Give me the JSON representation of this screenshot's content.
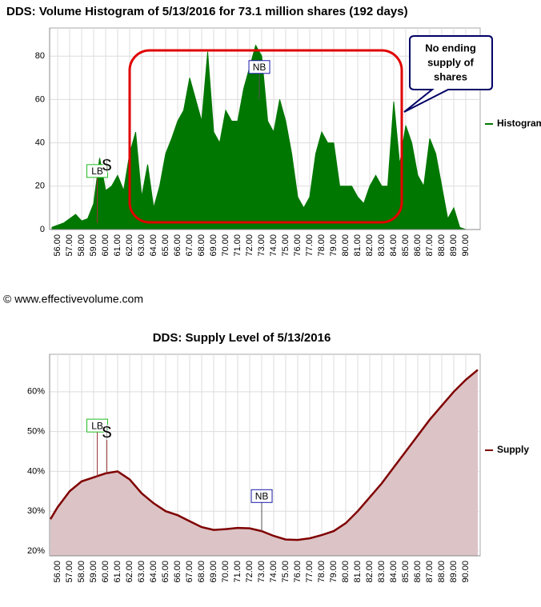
{
  "credit": "© www.effectivevolume.com",
  "chart_data": [
    {
      "type": "area",
      "title": "DDS: Volume Histogram of 5/13/2016 for 73.1 million shares (192 days)",
      "annotations": [
        "LB",
        "$",
        "NB"
      ],
      "callout": [
        "No ending",
        "supply of",
        "shares"
      ],
      "legend": "right",
      "grid": true,
      "xlim": [
        55.33,
        91.2
      ],
      "ylim": [
        0,
        93
      ],
      "yticks": [
        0,
        20,
        40,
        60,
        80
      ],
      "xticks": [
        {
          "value": 56,
          "label": "56.00"
        },
        {
          "value": 57,
          "label": "57.00"
        },
        {
          "value": 58,
          "label": "58.00"
        },
        {
          "value": 59,
          "label": "59.00"
        },
        {
          "value": 60,
          "label": "60.00"
        },
        {
          "value": 61,
          "label": "61.00"
        },
        {
          "value": 62,
          "label": "62.00"
        },
        {
          "value": 63,
          "label": "63.00"
        },
        {
          "value": 64,
          "label": "64.00"
        },
        {
          "value": 65,
          "label": "65.00"
        },
        {
          "value": 66,
          "label": "66.00"
        },
        {
          "value": 67,
          "label": "67.00"
        },
        {
          "value": 68,
          "label": "68.00"
        },
        {
          "value": 69,
          "label": "69.00"
        },
        {
          "value": 70,
          "label": "70.00"
        },
        {
          "value": 71,
          "label": "71.00"
        },
        {
          "value": 72,
          "label": "72.00"
        },
        {
          "value": 73,
          "label": "73.00"
        },
        {
          "value": 74,
          "label": "74.00"
        },
        {
          "value": 75,
          "label": "75.00"
        },
        {
          "value": 76,
          "label": "76.00"
        },
        {
          "value": 77,
          "label": "77.00"
        },
        {
          "value": 78,
          "label": "78.00"
        },
        {
          "value": 79,
          "label": "79.00"
        },
        {
          "value": 80,
          "label": "80.00"
        },
        {
          "value": 81,
          "label": "81.00"
        },
        {
          "value": 82,
          "label": "82.00"
        },
        {
          "value": 83,
          "label": "83.00"
        },
        {
          "value": 84,
          "label": "84.00"
        },
        {
          "value": 85,
          "label": "85.00"
        },
        {
          "value": 86,
          "label": "86.00"
        },
        {
          "value": 87,
          "label": "87.00"
        },
        {
          "value": 88,
          "label": "88.00"
        },
        {
          "value": 89,
          "label": "89.00"
        },
        {
          "value": 90,
          "label": "90.00"
        }
      ],
      "x": [
        55.5,
        56,
        56.5,
        57,
        57.5,
        58,
        58.5,
        59,
        59.5,
        60,
        60.5,
        61,
        61.5,
        62,
        62.5,
        63,
        63.5,
        64,
        64.5,
        65,
        65.5,
        66,
        66.5,
        67,
        67.5,
        68,
        68.5,
        69,
        69.5,
        70,
        70.5,
        71,
        71.5,
        72,
        72.5,
        73,
        73.5,
        74,
        74.5,
        75,
        75.5,
        76,
        76.5,
        77,
        77.5,
        78,
        78.5,
        79,
        79.5,
        80,
        80.5,
        81,
        81.5,
        82,
        82.5,
        83,
        83.5,
        84,
        84.5,
        85,
        85.5,
        86,
        86.5,
        87,
        87.5,
        88,
        88.5,
        89,
        89.5,
        90,
        90.5
      ],
      "series": [
        {
          "name": "Histogram",
          "color": "#007700",
          "values": [
            1,
            2,
            3,
            5,
            7,
            4,
            5,
            12,
            33,
            18,
            20,
            25,
            18,
            35,
            45,
            15,
            30,
            10,
            20,
            35,
            42,
            50,
            55,
            70,
            60,
            50,
            82,
            45,
            40,
            55,
            50,
            50,
            65,
            75,
            85,
            80,
            50,
            45,
            60,
            50,
            35,
            15,
            10,
            15,
            35,
            45,
            40,
            40,
            20,
            20,
            20,
            15,
            12,
            20,
            25,
            20,
            20,
            59,
            30,
            48,
            40,
            25,
            20,
            42,
            35,
            20,
            5,
            10,
            1,
            0,
            0
          ]
        }
      ]
    },
    {
      "type": "area",
      "title": "DDS: Supply Level of 5/13/2016",
      "annotations": [
        "LB",
        "$",
        "NB"
      ],
      "legend": "right",
      "grid": true,
      "xlim": [
        55.33,
        91.2
      ],
      "ylim": [
        18.8,
        69.4
      ],
      "yticks": [
        {
          "value": 20,
          "label": "20%"
        },
        {
          "value": 30,
          "label": "30%"
        },
        {
          "value": 40,
          "label": "40%"
        },
        {
          "value": 50,
          "label": "50%"
        },
        {
          "value": 60,
          "label": "60%"
        }
      ],
      "xticks": [
        {
          "value": 56,
          "label": "56.00"
        },
        {
          "value": 57,
          "label": "57.00"
        },
        {
          "value": 58,
          "label": "58.00"
        },
        {
          "value": 59,
          "label": "59.00"
        },
        {
          "value": 60,
          "label": "60.00"
        },
        {
          "value": 61,
          "label": "61.00"
        },
        {
          "value": 62,
          "label": "62.00"
        },
        {
          "value": 63,
          "label": "63.00"
        },
        {
          "value": 64,
          "label": "64.00"
        },
        {
          "value": 65,
          "label": "65.00"
        },
        {
          "value": 66,
          "label": "66.00"
        },
        {
          "value": 67,
          "label": "67.00"
        },
        {
          "value": 68,
          "label": "68.00"
        },
        {
          "value": 69,
          "label": "69.00"
        },
        {
          "value": 70,
          "label": "70.00"
        },
        {
          "value": 71,
          "label": "71.00"
        },
        {
          "value": 72,
          "label": "72.00"
        },
        {
          "value": 73,
          "label": "73.00"
        },
        {
          "value": 74,
          "label": "74.00"
        },
        {
          "value": 75,
          "label": "75.00"
        },
        {
          "value": 76,
          "label": "76.00"
        },
        {
          "value": 77,
          "label": "77.00"
        },
        {
          "value": 78,
          "label": "78.00"
        },
        {
          "value": 79,
          "label": "79.00"
        },
        {
          "value": 80,
          "label": "80.00"
        },
        {
          "value": 81,
          "label": "81.00"
        },
        {
          "value": 82,
          "label": "82.00"
        },
        {
          "value": 83,
          "label": "83.00"
        },
        {
          "value": 84,
          "label": "84.00"
        },
        {
          "value": 85,
          "label": "85.00"
        },
        {
          "value": 86,
          "label": "86.00"
        },
        {
          "value": 87,
          "label": "87.00"
        },
        {
          "value": 88,
          "label": "88.00"
        },
        {
          "value": 89,
          "label": "89.00"
        },
        {
          "value": 90,
          "label": "90.00"
        }
      ],
      "x": [
        55.4,
        56,
        57,
        58,
        59,
        60,
        61,
        62,
        63,
        64,
        65,
        66,
        67,
        68,
        69,
        70,
        71,
        72,
        73,
        74,
        75,
        76,
        77,
        78,
        79,
        80,
        81,
        82,
        83,
        84,
        85,
        86,
        87,
        88,
        89,
        90,
        91
      ],
      "series": [
        {
          "name": "Supply",
          "color": "#800000",
          "fill": "#dcc3c6",
          "values": [
            28,
            31,
            35,
            37.5,
            38.5,
            39.5,
            40,
            38,
            34.5,
            32,
            30,
            29,
            27.5,
            26,
            25.3,
            25.5,
            25.8,
            25.7,
            25,
            23.8,
            22.9,
            22.8,
            23.2,
            24,
            25,
            27,
            30,
            33.5,
            37,
            41,
            45,
            49,
            53,
            56.5,
            60,
            63,
            65.5
          ]
        }
      ]
    }
  ]
}
